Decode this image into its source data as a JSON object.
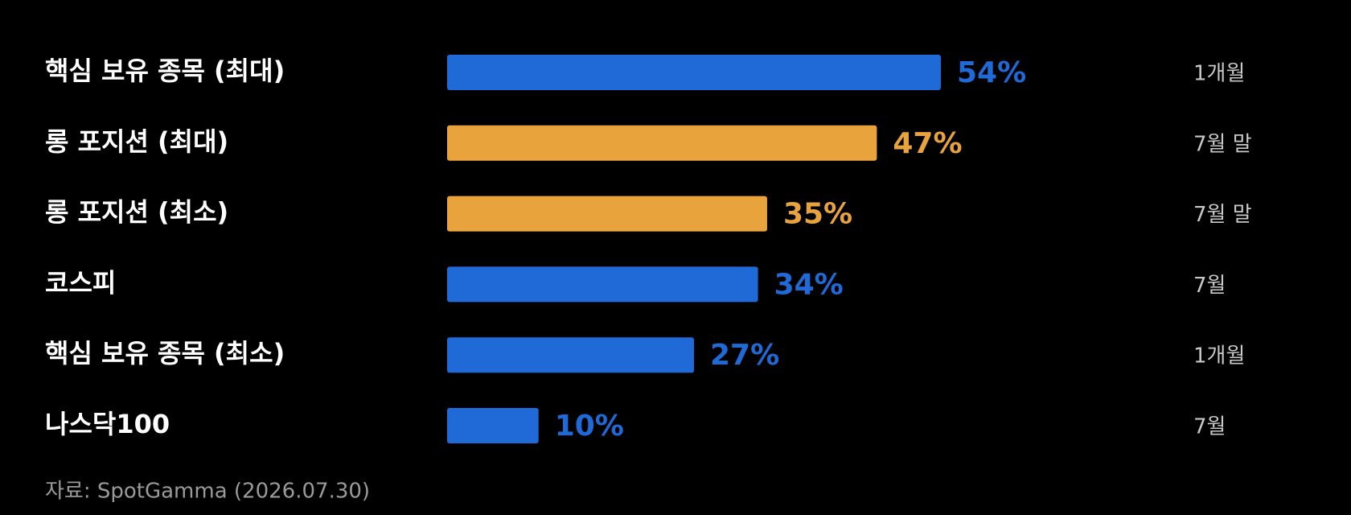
{
  "chart_data": {
    "type": "bar",
    "orientation": "horizontal",
    "categories": [
      "핵심 보유 종목 (최대)",
      "롱 포지션 (최대)",
      "롱 포지션 (최소)",
      "코스피",
      "핵심 보유 종목 (최소)",
      "나스닥100"
    ],
    "values": [
      54,
      47,
      35,
      34,
      27,
      10
    ],
    "value_labels": [
      "54%",
      "47%",
      "35%",
      "34%",
      "27%",
      "10%"
    ],
    "colors": [
      "#1f6ad6",
      "#e8a33d",
      "#e8a33d",
      "#1f6ad6",
      "#1f6ad6",
      "#1f6ad6"
    ],
    "periods": [
      "1개월",
      "7월 말",
      "7월 말",
      "7월",
      "1개월",
      "7월"
    ],
    "note": "자료: SpotGamma (2026.07.30)"
  }
}
